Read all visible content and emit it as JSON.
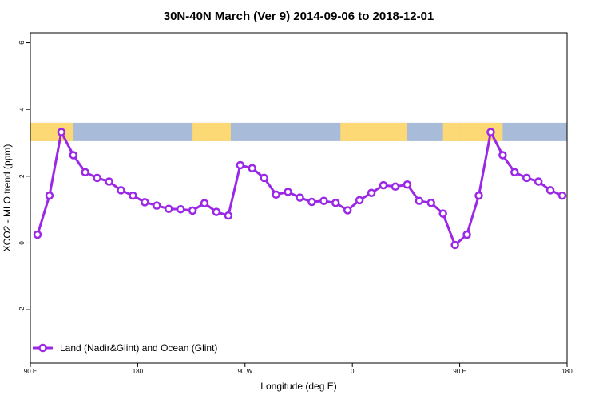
{
  "chart_data": {
    "type": "line",
    "title": "30N-40N March (Ver 9)   2014-09-06 to 2018-12-01",
    "xlabel": "Longitude (deg E)",
    "ylabel": "XCO2 - MLO trend (ppm)",
    "xlim": [
      90,
      540
    ],
    "ylim": [
      -3.6,
      6.3
    ],
    "x_ticks": [
      {
        "value": 90,
        "label": "90 E"
      },
      {
        "value": 180,
        "label": "180"
      },
      {
        "value": 270,
        "label": "90 W"
      },
      {
        "value": 360,
        "label": "0"
      },
      {
        "value": 450,
        "label": "90 E"
      },
      {
        "value": 540,
        "label": "180"
      }
    ],
    "y_ticks": [
      {
        "value": -2,
        "label": "-2"
      },
      {
        "value": 0,
        "label": "0"
      },
      {
        "value": 2,
        "label": "2"
      },
      {
        "value": 4,
        "label": "4"
      },
      {
        "value": 6,
        "label": "6"
      }
    ],
    "grid": false,
    "legend_position": "bottom-left",
    "map_strip": {
      "y_range": [
        3.05,
        3.6
      ],
      "land_color": "#fcd975",
      "ocean_color": "#a8bcd9"
    },
    "series": [
      {
        "name": "Land (Nadir&Glint) and Ocean (Glint)",
        "color": "#9b28e6",
        "x": [
          96,
          106,
          116,
          126,
          136,
          146,
          156,
          166,
          176,
          186,
          196,
          206,
          216,
          226,
          236,
          246,
          256,
          266,
          276,
          286,
          296,
          306,
          316,
          326,
          336,
          346,
          356,
          366,
          376,
          386,
          396,
          406,
          416,
          426,
          436,
          446,
          456,
          466,
          476,
          486,
          496,
          506,
          516,
          526,
          536
        ],
        "y": [
          0.25,
          1.42,
          3.32,
          2.63,
          2.12,
          1.95,
          1.84,
          1.58,
          1.42,
          1.22,
          1.12,
          1.02,
          1.01,
          0.97,
          1.19,
          0.93,
          0.82,
          2.33,
          2.24,
          1.95,
          1.45,
          1.53,
          1.36,
          1.23,
          1.26,
          1.2,
          0.98,
          1.28,
          1.5,
          1.73,
          1.69,
          1.75,
          1.26,
          1.2,
          0.88,
          -0.06,
          0.25,
          1.42,
          3.32,
          2.63,
          2.12,
          1.95,
          1.84,
          1.58,
          1.42
        ]
      }
    ]
  }
}
